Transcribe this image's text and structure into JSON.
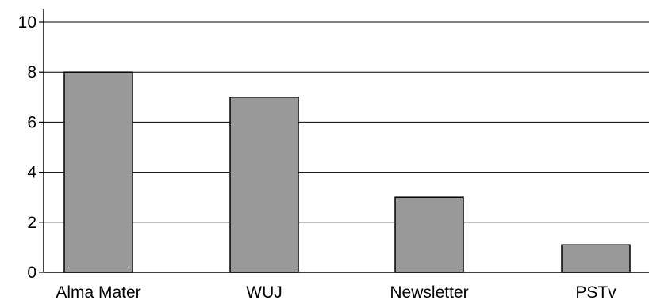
{
  "chart_data": {
    "type": "bar",
    "categories": [
      "Alma Mater",
      "WUJ",
      "Newsletter",
      "PSTv"
    ],
    "values": [
      8,
      7,
      3,
      1.1
    ],
    "title": "",
    "xlabel": "",
    "ylabel": "",
    "ylim": [
      0,
      10
    ],
    "yticks": [
      0,
      2,
      4,
      6,
      8,
      10
    ],
    "grid": true,
    "legend": "none",
    "bar_color": "#999999",
    "bar_edge_color": "#000000",
    "grid_color": "#000000"
  }
}
